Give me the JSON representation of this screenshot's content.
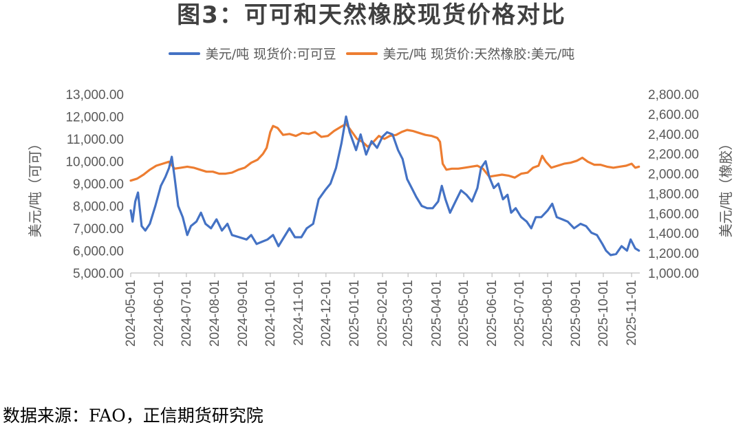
{
  "title": "图3：可可和天然橡胶现货价格对比",
  "source": "数据来源：FAO，正信期货研究院",
  "colors": {
    "cocoa": "#4472C4",
    "rubber": "#ED7D31",
    "axis": "#BFBFBF",
    "text": "#595959"
  },
  "chart_data": {
    "type": "line",
    "grid": false,
    "legend_position": "top",
    "x_tick_labels": [
      "2024-05-01",
      "2024-06-01",
      "2024-07-01",
      "2024-08-01",
      "2024-09-01",
      "2024-10-01",
      "2024-11-01",
      "2024-12-01",
      "2025-01-01",
      "2025-02-01",
      "2025-03-01",
      "2025-04-01",
      "2025-05-01",
      "2025-06-01",
      "2025-07-01",
      "2025-08-01",
      "2025-09-01",
      "2025-10-01",
      "2025-11-01"
    ],
    "x_range": [
      "2024-05-01",
      "2025-11-10"
    ],
    "y_left": {
      "label": "美元/吨（可可）",
      "range": [
        5000,
        13000
      ],
      "ticks": [
        "5,000.00",
        "6,000.00",
        "7,000.00",
        "8,000.00",
        "9,000.00",
        "10,000.00",
        "11,000.00",
        "12,000.00",
        "13,000.00"
      ]
    },
    "y_right": {
      "label": "美元/吨（橡胶）",
      "range": [
        1000,
        2800
      ],
      "ticks": [
        "1,000.00",
        "1,200.00",
        "1,400.00",
        "1,600.00",
        "1,800.00",
        "2,000.00",
        "2,200.00",
        "2,400.00",
        "2,600.00",
        "2,800.00"
      ]
    },
    "series": [
      {
        "name": "美元/吨  现货价:可可豆",
        "axis": "left",
        "points": [
          [
            "2024-05-01",
            7800
          ],
          [
            "2024-05-03",
            7300
          ],
          [
            "2024-05-06",
            8200
          ],
          [
            "2024-05-09",
            8600
          ],
          [
            "2024-05-13",
            7100
          ],
          [
            "2024-05-17",
            6900
          ],
          [
            "2024-05-22",
            7200
          ],
          [
            "2024-05-28",
            8000
          ],
          [
            "2024-06-03",
            8900
          ],
          [
            "2024-06-08",
            9300
          ],
          [
            "2024-06-12",
            9700
          ],
          [
            "2024-06-15",
            10200
          ],
          [
            "2024-06-18",
            9300
          ],
          [
            "2024-06-22",
            8000
          ],
          [
            "2024-06-27",
            7500
          ],
          [
            "2024-07-02",
            6700
          ],
          [
            "2024-07-06",
            7100
          ],
          [
            "2024-07-12",
            7300
          ],
          [
            "2024-07-17",
            7700
          ],
          [
            "2024-07-22",
            7200
          ],
          [
            "2024-07-28",
            7000
          ],
          [
            "2024-08-03",
            7400
          ],
          [
            "2024-08-09",
            6900
          ],
          [
            "2024-08-15",
            7200
          ],
          [
            "2024-08-20",
            6700
          ],
          [
            "2024-08-28",
            6600
          ],
          [
            "2024-09-05",
            6500
          ],
          [
            "2024-09-10",
            6700
          ],
          [
            "2024-09-16",
            6300
          ],
          [
            "2024-09-22",
            6400
          ],
          [
            "2024-09-28",
            6500
          ],
          [
            "2024-10-04",
            6700
          ],
          [
            "2024-10-10",
            6200
          ],
          [
            "2024-10-16",
            6600
          ],
          [
            "2024-10-22",
            7000
          ],
          [
            "2024-10-28",
            6600
          ],
          [
            "2024-11-04",
            6600
          ],
          [
            "2024-11-10",
            7000
          ],
          [
            "2024-11-17",
            7200
          ],
          [
            "2024-11-23",
            8300
          ],
          [
            "2024-11-30",
            8700
          ],
          [
            "2024-12-06",
            9000
          ],
          [
            "2024-12-12",
            9700
          ],
          [
            "2024-12-18",
            10800
          ],
          [
            "2024-12-23",
            12000
          ],
          [
            "2024-12-27",
            11300
          ],
          [
            "2025-01-03",
            10500
          ],
          [
            "2025-01-08",
            11200
          ],
          [
            "2025-01-14",
            10300
          ],
          [
            "2025-01-20",
            10900
          ],
          [
            "2025-01-26",
            10600
          ],
          [
            "2025-02-01",
            11100
          ],
          [
            "2025-02-06",
            11300
          ],
          [
            "2025-02-12",
            11200
          ],
          [
            "2025-02-18",
            10500
          ],
          [
            "2025-02-23",
            10100
          ],
          [
            "2025-02-28",
            9200
          ],
          [
            "2025-03-05",
            8800
          ],
          [
            "2025-03-10",
            8400
          ],
          [
            "2025-03-16",
            8000
          ],
          [
            "2025-03-22",
            7900
          ],
          [
            "2025-03-28",
            7900
          ],
          [
            "2025-04-03",
            8200
          ],
          [
            "2025-04-07",
            8900
          ],
          [
            "2025-04-11",
            8300
          ],
          [
            "2025-04-16",
            7700
          ],
          [
            "2025-04-22",
            8200
          ],
          [
            "2025-04-28",
            8700
          ],
          [
            "2025-05-04",
            8500
          ],
          [
            "2025-05-10",
            8200
          ],
          [
            "2025-05-16",
            8800
          ],
          [
            "2025-05-20",
            9700
          ],
          [
            "2025-05-25",
            10000
          ],
          [
            "2025-05-29",
            9300
          ],
          [
            "2025-06-03",
            8800
          ],
          [
            "2025-06-08",
            9000
          ],
          [
            "2025-06-13",
            8300
          ],
          [
            "2025-06-18",
            8500
          ],
          [
            "2025-06-22",
            7700
          ],
          [
            "2025-06-27",
            7900
          ],
          [
            "2025-07-03",
            7500
          ],
          [
            "2025-07-09",
            7300
          ],
          [
            "2025-07-14",
            7000
          ],
          [
            "2025-07-19",
            7500
          ],
          [
            "2025-07-25",
            7500
          ],
          [
            "2025-08-01",
            7800
          ],
          [
            "2025-08-06",
            8100
          ],
          [
            "2025-08-11",
            7500
          ],
          [
            "2025-08-17",
            7400
          ],
          [
            "2025-08-23",
            7300
          ],
          [
            "2025-08-30",
            7000
          ],
          [
            "2025-09-06",
            7200
          ],
          [
            "2025-09-12",
            7100
          ],
          [
            "2025-09-18",
            6800
          ],
          [
            "2025-09-24",
            6700
          ],
          [
            "2025-09-30",
            6300
          ],
          [
            "2025-10-04",
            6000
          ],
          [
            "2025-10-09",
            5800
          ],
          [
            "2025-10-15",
            5850
          ],
          [
            "2025-10-21",
            6200
          ],
          [
            "2025-10-27",
            6000
          ],
          [
            "2025-10-31",
            6500
          ],
          [
            "2025-11-05",
            6100
          ],
          [
            "2025-11-09",
            6000
          ]
        ]
      },
      {
        "name": "美元/吨  现货价:天然橡胶:美元/吨",
        "axis": "right",
        "points": [
          [
            "2024-05-01",
            1930
          ],
          [
            "2024-05-08",
            1950
          ],
          [
            "2024-05-15",
            1990
          ],
          [
            "2024-05-22",
            2040
          ],
          [
            "2024-05-29",
            2080
          ],
          [
            "2024-06-05",
            2100
          ],
          [
            "2024-06-12",
            2120
          ],
          [
            "2024-06-18",
            2050
          ],
          [
            "2024-06-25",
            2060
          ],
          [
            "2024-07-02",
            2070
          ],
          [
            "2024-07-09",
            2060
          ],
          [
            "2024-07-16",
            2040
          ],
          [
            "2024-07-23",
            2020
          ],
          [
            "2024-07-30",
            2020
          ],
          [
            "2024-08-06",
            2000
          ],
          [
            "2024-08-13",
            2000
          ],
          [
            "2024-08-20",
            2010
          ],
          [
            "2024-08-27",
            2040
          ],
          [
            "2024-09-03",
            2060
          ],
          [
            "2024-09-10",
            2110
          ],
          [
            "2024-09-17",
            2140
          ],
          [
            "2024-09-23",
            2200
          ],
          [
            "2024-09-27",
            2260
          ],
          [
            "2024-10-01",
            2420
          ],
          [
            "2024-10-04",
            2480
          ],
          [
            "2024-10-09",
            2460
          ],
          [
            "2024-10-15",
            2390
          ],
          [
            "2024-10-22",
            2400
          ],
          [
            "2024-10-29",
            2380
          ],
          [
            "2024-11-05",
            2410
          ],
          [
            "2024-11-12",
            2400
          ],
          [
            "2024-11-19",
            2420
          ],
          [
            "2024-11-26",
            2370
          ],
          [
            "2024-12-03",
            2380
          ],
          [
            "2024-12-10",
            2430
          ],
          [
            "2024-12-17",
            2470
          ],
          [
            "2024-12-23",
            2500
          ],
          [
            "2024-12-28",
            2440
          ],
          [
            "2025-01-04",
            2350
          ],
          [
            "2025-01-10",
            2320
          ],
          [
            "2025-01-16",
            2270
          ],
          [
            "2025-01-22",
            2320
          ],
          [
            "2025-01-28",
            2380
          ],
          [
            "2025-02-03",
            2350
          ],
          [
            "2025-02-09",
            2380
          ],
          [
            "2025-02-16",
            2390
          ],
          [
            "2025-02-22",
            2420
          ],
          [
            "2025-02-28",
            2440
          ],
          [
            "2025-03-06",
            2430
          ],
          [
            "2025-03-13",
            2410
          ],
          [
            "2025-03-20",
            2390
          ],
          [
            "2025-03-27",
            2380
          ],
          [
            "2025-04-02",
            2360
          ],
          [
            "2025-04-05",
            2320
          ],
          [
            "2025-04-08",
            2100
          ],
          [
            "2025-04-12",
            2040
          ],
          [
            "2025-04-18",
            2050
          ],
          [
            "2025-04-25",
            2050
          ],
          [
            "2025-05-02",
            2060
          ],
          [
            "2025-05-09",
            2070
          ],
          [
            "2025-05-16",
            2080
          ],
          [
            "2025-05-22",
            2050
          ],
          [
            "2025-05-29",
            1970
          ],
          [
            "2025-06-05",
            1980
          ],
          [
            "2025-06-12",
            1990
          ],
          [
            "2025-06-19",
            1980
          ],
          [
            "2025-06-26",
            1960
          ],
          [
            "2025-07-03",
            2000
          ],
          [
            "2025-07-10",
            2010
          ],
          [
            "2025-07-16",
            2060
          ],
          [
            "2025-07-22",
            2080
          ],
          [
            "2025-07-26",
            2180
          ],
          [
            "2025-07-30",
            2120
          ],
          [
            "2025-08-05",
            2060
          ],
          [
            "2025-08-12",
            2080
          ],
          [
            "2025-08-19",
            2100
          ],
          [
            "2025-08-26",
            2110
          ],
          [
            "2025-09-02",
            2130
          ],
          [
            "2025-09-08",
            2160
          ],
          [
            "2025-09-14",
            2120
          ],
          [
            "2025-09-21",
            2090
          ],
          [
            "2025-09-28",
            2090
          ],
          [
            "2025-10-05",
            2070
          ],
          [
            "2025-10-12",
            2060
          ],
          [
            "2025-10-19",
            2070
          ],
          [
            "2025-10-26",
            2080
          ],
          [
            "2025-11-01",
            2100
          ],
          [
            "2025-11-05",
            2060
          ],
          [
            "2025-11-09",
            2070
          ]
        ]
      }
    ]
  }
}
